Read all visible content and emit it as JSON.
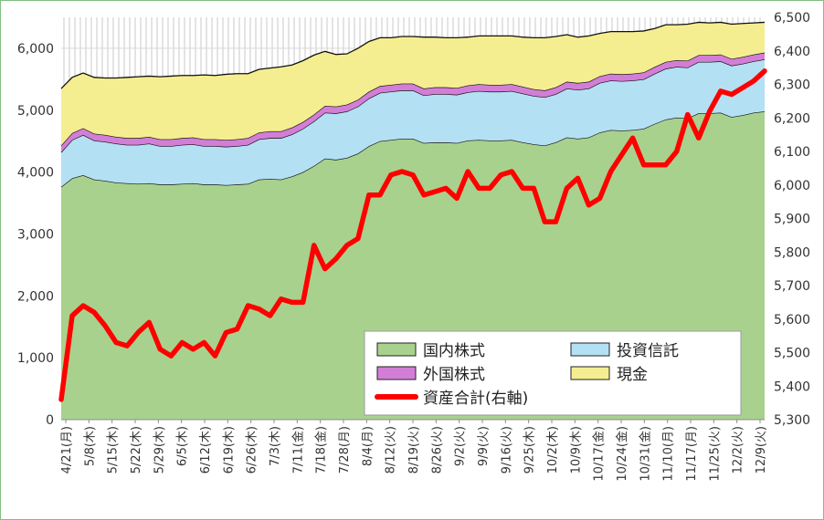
{
  "chart_data": {
    "type": "area",
    "stacked": true,
    "y_left": {
      "min": 0,
      "max": 6500,
      "ticks": [
        "0",
        "1,000",
        "2,000",
        "3,000",
        "4,000",
        "5,000",
        "6,000"
      ]
    },
    "y_right": {
      "min": 5300,
      "max": 6500,
      "ticks": [
        "5,300",
        "5,400",
        "5,500",
        "5,600",
        "5,700",
        "5,800",
        "5,900",
        "6,000",
        "6,100",
        "6,200",
        "6,300",
        "6,400",
        "6,500"
      ]
    },
    "x_tick_labels": [
      "4/21(月)",
      "5/8(木)",
      "5/15(木)",
      "5/22(木)",
      "5/29(木)",
      "6/5(木)",
      "6/12(木)",
      "6/19(木)",
      "6/26(木)",
      "7/3(木)",
      "7/11(金)",
      "7/18(金)",
      "7/28(月)",
      "8/4(月)",
      "8/12(火)",
      "8/19(火)",
      "8/26(火)",
      "9/2(火)",
      "9/9(火)",
      "9/16(火)",
      "9/25(木)",
      "10/2(木)",
      "10/9(木)",
      "10/17(金)",
      "10/24(金)",
      "10/31(金)",
      "11/10(月)",
      "11/17(月)",
      "11/25(火)",
      "12/2(火)",
      "12/9(火)"
    ],
    "grid": "horizontal",
    "legend_position": "bottom-right",
    "legend": [
      "国内株式",
      "投資信託",
      "外国株式",
      "現金",
      "資産合計(右軸)"
    ],
    "series": [
      {
        "name": "国内株式",
        "color": "#a9d18e",
        "axis": "left",
        "values": [
          3760,
          3900,
          3950,
          3880,
          3860,
          3830,
          3820,
          3810,
          3820,
          3800,
          3800,
          3810,
          3820,
          3800,
          3800,
          3790,
          3800,
          3810,
          3880,
          3890,
          3880,
          3930,
          4000,
          4100,
          4220,
          4200,
          4230,
          4300,
          4420,
          4500,
          4520,
          4540,
          4540,
          4470,
          4480,
          4480,
          4470,
          4510,
          4520,
          4510,
          4510,
          4520,
          4480,
          4450,
          4430,
          4480,
          4560,
          4540,
          4560,
          4640,
          4680,
          4670,
          4680,
          4700,
          4780,
          4850,
          4880,
          4870,
          4950,
          4950,
          4960,
          4890,
          4920,
          4960,
          4980
        ]
      },
      {
        "name": "投資信託",
        "color": "#b4e0f4",
        "axis": "left",
        "values": [
          560,
          620,
          650,
          630,
          630,
          630,
          620,
          630,
          640,
          620,
          620,
          630,
          630,
          620,
          620,
          620,
          620,
          630,
          650,
          660,
          670,
          680,
          700,
          720,
          740,
          750,
          750,
          760,
          770,
          780,
          780,
          780,
          780,
          770,
          780,
          780,
          780,
          780,
          790,
          790,
          790,
          790,
          790,
          780,
          780,
          780,
          790,
          790,
          790,
          800,
          800,
          800,
          800,
          800,
          810,
          820,
          820,
          820,
          830,
          830,
          830,
          830,
          830,
          830,
          840
        ]
      },
      {
        "name": "外国株式",
        "color": "#d37ed6",
        "axis": "left",
        "values": [
          110,
          110,
          110,
          110,
          110,
          110,
          110,
          110,
          110,
          110,
          110,
          110,
          110,
          110,
          110,
          110,
          110,
          110,
          110,
          110,
          110,
          110,
          110,
          110,
          110,
          110,
          110,
          110,
          110,
          110,
          110,
          110,
          110,
          110,
          110,
          110,
          110,
          110,
          110,
          110,
          110,
          110,
          110,
          110,
          110,
          110,
          110,
          110,
          110,
          110,
          110,
          110,
          110,
          110,
          110,
          110,
          110,
          110,
          110,
          110,
          110,
          110,
          110,
          110,
          110
        ]
      },
      {
        "name": "現金",
        "color": "#f5ee91",
        "axis": "left",
        "values": [
          920,
          900,
          890,
          910,
          920,
          950,
          980,
          990,
          980,
          1010,
          1020,
          1010,
          1000,
          1040,
          1030,
          1060,
          1060,
          1040,
          1020,
          1020,
          1040,
          1010,
          990,
          960,
          880,
          840,
          820,
          830,
          810,
          780,
          760,
          760,
          760,
          830,
          810,
          800,
          810,
          780,
          780,
          790,
          790,
          780,
          800,
          830,
          850,
          820,
          760,
          740,
          740,
          690,
          680,
          690,
          680,
          670,
          620,
          600,
          570,
          590,
          530,
          520,
          520,
          560,
          540,
          510,
          490
        ]
      },
      {
        "name": "資産合計(右軸)",
        "color": "#ff0000",
        "axis": "right",
        "values": [
          5360,
          5610,
          5640,
          5620,
          5580,
          5530,
          5520,
          5560,
          5590,
          5510,
          5490,
          5530,
          5510,
          5530,
          5490,
          5560,
          5570,
          5640,
          5630,
          5610,
          5660,
          5650,
          5650,
          5820,
          5750,
          5780,
          5820,
          5840,
          5970,
          5970,
          6030,
          6040,
          6030,
          5970,
          5980,
          5990,
          5960,
          6040,
          5990,
          5990,
          6030,
          6040,
          5990,
          5990,
          5890,
          5890,
          5990,
          6020,
          5940,
          5960,
          6040,
          6090,
          6140,
          6060,
          6060,
          6060,
          6100,
          6210,
          6140,
          6220,
          6280,
          6270,
          6290,
          6310,
          6340
        ]
      }
    ]
  }
}
